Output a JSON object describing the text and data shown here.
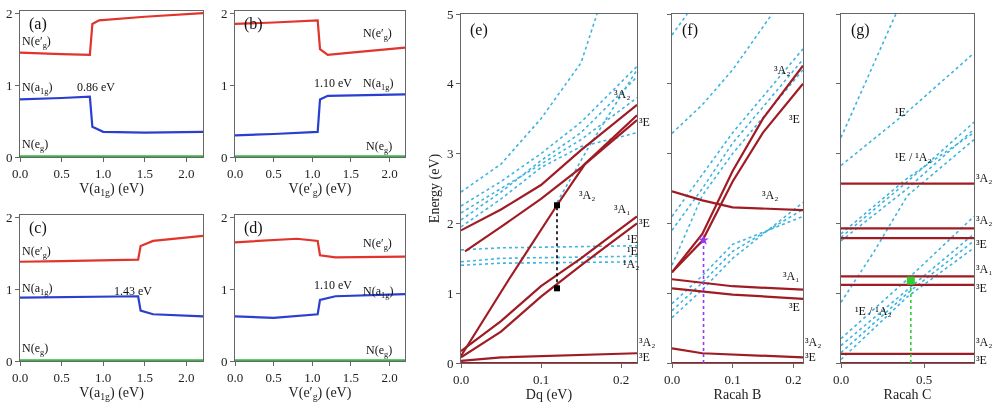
{
  "chart_data": [
    {
      "type": "line",
      "xlabel": "V(a$_{1g}$) (eV)",
      "xlim": [
        0,
        2.2
      ],
      "ylim": [
        0,
        2.03
      ],
      "xticks": [
        {
          "value": 0,
          "label": "0.0"
        },
        0.5,
        {
          "value": 1,
          "label": "1.0"
        },
        1.5,
        {
          "value": 2,
          "label": "2.0"
        }
      ],
      "yticks": [
        0,
        1,
        2
      ],
      "series": [
        {
          "color": "#e0342c",
          "x": [
            0,
            0.5,
            0.84,
            0.87,
            0.95,
            1.5,
            2.2
          ],
          "values": [
            1.45,
            1.43,
            1.42,
            1.85,
            1.9,
            1.95,
            2.0
          ]
        },
        {
          "color": "#2a3fcf",
          "x": [
            0,
            0.5,
            0.84,
            0.87,
            1.0,
            1.5,
            2.2
          ],
          "values": [
            0.8,
            0.82,
            0.84,
            0.42,
            0.35,
            0.34,
            0.35
          ]
        },
        {
          "color": "#3cb34a",
          "x": [
            0,
            2.2
          ],
          "values": [
            0.01,
            0.01
          ]
        }
      ],
      "annotations": [
        "(a)",
        "N(e′$_{g}$)",
        "N(a$_{1g}$)",
        "N(e$_{g}$)",
        "0.86 eV"
      ]
    },
    {
      "type": "line",
      "xlabel": "V(e′$_{g}$) (eV)",
      "xlim": [
        0,
        2.2
      ],
      "ylim": [
        0,
        2.03
      ],
      "xticks": [
        {
          "value": 0,
          "label": "0.0"
        },
        0.5,
        {
          "value": 1,
          "label": "1.0"
        },
        1.5,
        {
          "value": 2,
          "label": "2.0"
        }
      ],
      "yticks": [
        0,
        1,
        2
      ],
      "series": [
        {
          "color": "#e0342c",
          "x": [
            0,
            0.5,
            1.07,
            1.1,
            1.2,
            1.5,
            2.2
          ],
          "values": [
            1.85,
            1.87,
            1.9,
            1.5,
            1.42,
            1.45,
            1.52
          ]
        },
        {
          "color": "#2a3fcf",
          "x": [
            0,
            0.5,
            1.07,
            1.1,
            1.2,
            2.2
          ],
          "values": [
            0.3,
            0.32,
            0.35,
            0.8,
            0.85,
            0.87
          ]
        },
        {
          "color": "#3cb34a",
          "x": [
            0,
            2.2
          ],
          "values": [
            0.01,
            0.01
          ]
        }
      ],
      "annotations": [
        "(b)",
        "N(e′$_{g}$)",
        "N(a$_{1g}$)",
        "N(e$_{g}$)",
        "1.10 eV"
      ]
    },
    {
      "type": "line",
      "xlabel": "V(a$_{1g}$) (eV)",
      "xlim": [
        0,
        2.2
      ],
      "ylim": [
        0,
        2.03
      ],
      "xticks": [
        {
          "value": 0,
          "label": "0.0"
        },
        0.5,
        {
          "value": 1,
          "label": "1.0"
        },
        1.5,
        {
          "value": 2,
          "label": "2.0"
        }
      ],
      "yticks": [
        0,
        1,
        2
      ],
      "series": [
        {
          "color": "#e0342c",
          "x": [
            0,
            0.5,
            1.42,
            1.45,
            1.6,
            2.2
          ],
          "values": [
            1.38,
            1.39,
            1.41,
            1.6,
            1.67,
            1.74
          ]
        },
        {
          "color": "#2a3fcf",
          "x": [
            0,
            1.42,
            1.45,
            1.6,
            2.2
          ],
          "values": [
            0.88,
            0.9,
            0.7,
            0.65,
            0.62
          ]
        },
        {
          "color": "#3cb34a",
          "x": [
            0,
            2.2
          ],
          "values": [
            0.01,
            0.01
          ]
        }
      ],
      "annotations": [
        "(c)",
        "N(e′$_{g}$)",
        "N(a$_{1g}$)",
        "N(e$_{g}$)",
        "1.43 eV"
      ]
    },
    {
      "type": "line",
      "xlabel": "V(e′$_{g}$) (eV)",
      "xlim": [
        0,
        2.2
      ],
      "ylim": [
        0,
        2.03
      ],
      "xticks": [
        {
          "value": 0,
          "label": "0.0"
        },
        0.5,
        {
          "value": 1,
          "label": "1.0"
        },
        1.5,
        {
          "value": 2,
          "label": "2.0"
        }
      ],
      "yticks": [
        0,
        1,
        2
      ],
      "series": [
        {
          "color": "#e0342c",
          "x": [
            0,
            0.8,
            1.07,
            1.1,
            1.3,
            2.2
          ],
          "values": [
            1.65,
            1.7,
            1.67,
            1.47,
            1.44,
            1.45
          ]
        },
        {
          "color": "#2a3fcf",
          "x": [
            0,
            0.5,
            1.07,
            1.1,
            1.3,
            2.2
          ],
          "values": [
            0.62,
            0.6,
            0.65,
            0.85,
            0.9,
            0.93
          ]
        },
        {
          "color": "#3cb34a",
          "x": [
            0,
            2.2
          ],
          "values": [
            0.01,
            0.01
          ]
        }
      ],
      "annotations": [
        "(d)",
        "N(e′$_{g}$)",
        "N(a$_{1g}$)",
        "N(e$_{g}$)",
        "1.10 eV"
      ]
    },
    {
      "type": "line",
      "xlabel": "Dq (eV)",
      "ylabel": "Energy (eV)",
      "xlim": [
        0,
        0.22
      ],
      "ylim": [
        0,
        5
      ],
      "xticks": [
        {
          "value": 0,
          "label": "0.0"
        },
        0.1,
        0.2
      ],
      "yticks": [
        0,
        1,
        2,
        3,
        4,
        5
      ],
      "series": [
        {
          "color": "#3fb4e0",
          "line_style": "dotted",
          "x": [
            0,
            0.05,
            0.1,
            0.15,
            0.17
          ],
          "values": [
            2.45,
            2.85,
            3.5,
            4.3,
            5.0
          ]
        },
        {
          "color": "#3fb4e0",
          "line_style": "dotted",
          "x": [
            0,
            0.05,
            0.1,
            0.15,
            0.22
          ],
          "values": [
            2.25,
            2.6,
            3.0,
            3.45,
            4.25
          ]
        },
        {
          "color": "#3fb4e0",
          "line_style": "dotted",
          "x": [
            0,
            0.05,
            0.1,
            0.15,
            0.22
          ],
          "values": [
            2.05,
            2.45,
            2.9,
            3.3,
            4.1
          ]
        },
        {
          "color": "#3fb4e0",
          "line_style": "dotted",
          "x": [
            0,
            0.05,
            0.1,
            0.15,
            0.22
          ],
          "values": [
            1.95,
            2.35,
            2.8,
            3.1,
            3.3
          ]
        },
        {
          "color": "#3fb4e0",
          "line_style": "dotted",
          "x": [
            0,
            0.05,
            0.1,
            0.15,
            0.22
          ],
          "values": [
            2.15,
            2.5,
            2.85,
            3.2,
            3.8
          ]
        },
        {
          "color": "#3fb4e0",
          "line_style": "dotted",
          "x": [
            0.12,
            0.16,
            0.22
          ],
          "values": [
            2.3,
            3.1,
            4.2
          ]
        },
        {
          "color": "#3fb4e0",
          "line_style": "dotted",
          "x": [
            0,
            0.05,
            0.22
          ],
          "values": [
            1.62,
            1.65,
            1.68
          ]
        },
        {
          "color": "#3fb4e0",
          "line_style": "dotted",
          "x": [
            0,
            0.05,
            0.22
          ],
          "values": [
            1.45,
            1.5,
            1.53
          ]
        },
        {
          "color": "#3fb4e0",
          "line_style": "dotted",
          "x": [
            0,
            0.05,
            0.22
          ],
          "values": [
            1.4,
            1.43,
            1.45
          ]
        },
        {
          "color": "#a01c24",
          "x": [
            0,
            0.22
          ],
          "values": [
            0,
            0
          ]
        },
        {
          "color": "#a01c24",
          "x": [
            0,
            0.05,
            0.22
          ],
          "values": [
            0.03,
            0.08,
            0.14
          ]
        },
        {
          "color": "#a01c24",
          "x": [
            0,
            0.06,
            0.12,
            0.155,
            0.22
          ],
          "values": [
            0.1,
            1.2,
            2.26,
            2.85,
            3.48
          ]
        },
        {
          "color": "#a01c24",
          "x": [
            0.005,
            0.05,
            0.1,
            0.15,
            0.22
          ],
          "values": [
            1.6,
            1.95,
            2.35,
            2.8,
            3.55
          ]
        },
        {
          "color": "#a01c24",
          "x": [
            0,
            0.05,
            0.1,
            0.15,
            0.22
          ],
          "values": [
            1.9,
            2.2,
            2.55,
            3.05,
            3.7
          ]
        },
        {
          "color": "#a01c24",
          "x": [
            0,
            0.05,
            0.1,
            0.15,
            0.22
          ],
          "values": [
            0.17,
            0.6,
            1.1,
            1.5,
            2.1
          ]
        },
        {
          "color": "#a01c24",
          "x": [
            0,
            0.05,
            0.1,
            0.15,
            0.22
          ],
          "values": [
            0.08,
            0.45,
            0.95,
            1.4,
            2.0
          ]
        },
        {
          "color": "#000000",
          "line_style": "dotted",
          "marker": "square",
          "x": [
            0.12,
            0.12
          ],
          "values": [
            1.07,
            2.26
          ]
        }
      ],
      "annotations": [
        "(e)",
        "³A₂",
        "³E",
        "³A₂",
        "³A₁",
        "³E",
        "¹E",
        "¹E",
        "¹A₂",
        "³A₂",
        "³E"
      ]
    },
    {
      "type": "line",
      "xlabel": "Racah B",
      "xlim": [
        0,
        0.216
      ],
      "ylim": [
        0,
        5
      ],
      "xticks": [
        {
          "value": 0,
          "label": "0.0"
        },
        0.1,
        0.2
      ],
      "yticks": [
        0,
        1,
        2,
        3,
        4,
        5
      ],
      "tick_labels": "x",
      "series": [
        {
          "color": "#3fb4e0",
          "line_style": "dotted",
          "x": [
            0,
            0.05,
            0.1,
            0.165
          ],
          "values": [
            3.29,
            3.7,
            4.2,
            5.0
          ]
        },
        {
          "color": "#3fb4e0",
          "line_style": "dotted",
          "x": [
            0,
            0.025
          ],
          "values": [
            4.7,
            5.0
          ]
        },
        {
          "color": "#3fb4e0",
          "line_style": "dotted",
          "x": [
            0,
            0.05,
            0.1,
            0.216
          ],
          "values": [
            2.1,
            2.7,
            3.3,
            4.5
          ]
        },
        {
          "color": "#3fb4e0",
          "line_style": "dotted",
          "x": [
            0,
            0.05,
            0.1,
            0.216
          ],
          "values": [
            1.9,
            2.5,
            3.15,
            4.35
          ]
        },
        {
          "color": "#3fb4e0",
          "line_style": "dotted",
          "x": [
            0,
            0.05,
            0.1,
            0.216
          ],
          "values": [
            1.4,
            2.4,
            3.0,
            4.2
          ]
        },
        {
          "color": "#3fb4e0",
          "line_style": "dotted",
          "x": [
            0,
            0.05,
            0.1,
            0.216
          ],
          "values": [
            0.65,
            1.05,
            1.5,
            2.3
          ]
        },
        {
          "color": "#3fb4e0",
          "line_style": "dotted",
          "x": [
            0,
            0.05,
            0.1,
            0.216
          ],
          "values": [
            0.75,
            1.15,
            1.6,
            2.2
          ]
        },
        {
          "color": "#3fb4e0",
          "line_style": "dotted",
          "x": [
            0,
            0.05,
            0.1,
            0.216
          ],
          "values": [
            0.85,
            1.25,
            1.7,
            2.1
          ]
        },
        {
          "color": "#a01c24",
          "x": [
            0,
            0.216
          ],
          "values": [
            0,
            0
          ]
        },
        {
          "color": "#a01c24",
          "x": [
            0,
            0.05,
            0.216
          ],
          "values": [
            0.21,
            0.14,
            0.08
          ]
        },
        {
          "color": "#a01c24",
          "x": [
            0,
            0.1,
            0.216
          ],
          "values": [
            1.2,
            1.1,
            1.05
          ]
        },
        {
          "color": "#a01c24",
          "x": [
            0,
            0.1,
            0.216
          ],
          "values": [
            1.07,
            0.98,
            0.92
          ]
        },
        {
          "color": "#a01c24",
          "x": [
            0,
            0.05,
            0.1,
            0.216
          ],
          "values": [
            2.46,
            2.33,
            2.23,
            2.19
          ]
        },
        {
          "color": "#a01c24",
          "x": [
            0,
            0.05,
            0.1,
            0.15,
            0.216
          ],
          "values": [
            1.3,
            1.85,
            2.75,
            3.5,
            4.26
          ]
        },
        {
          "color": "#a01c24",
          "x": [
            0,
            0.05,
            0.1,
            0.15,
            0.216
          ],
          "values": [
            1.3,
            1.75,
            2.6,
            3.3,
            4.0
          ]
        },
        {
          "color": "#9933ff",
          "line_style": "dotted",
          "x": [
            0.052,
            0.052
          ],
          "values": [
            0,
            1.76
          ]
        },
        {
          "type": "scatter",
          "color": "#9933ff",
          "marker": "star",
          "x": [
            0.052
          ],
          "values": [
            1.76
          ]
        }
      ],
      "annotations": [
        "(f)",
        "³A₂",
        "³E",
        "³A₂",
        "³A₁",
        "³E",
        "³A₂",
        "³E"
      ]
    },
    {
      "type": "line",
      "xlabel": "Racah C",
      "xlim": [
        0,
        0.8
      ],
      "ylim": [
        0,
        5
      ],
      "xticks": [
        {
          "value": 0,
          "label": "0.0"
        },
        0.5
      ],
      "yticks": [
        0,
        1,
        2,
        3,
        4,
        5
      ],
      "tick_labels": "x",
      "series": [
        {
          "color": "#3fb4e0",
          "line_style": "dotted",
          "x": [
            0,
            0.33
          ],
          "values": [
            3.23,
            5.0
          ]
        },
        {
          "color": "#3fb4e0",
          "line_style": "dotted",
          "x": [
            0,
            0.4,
            0.8
          ],
          "values": [
            2.83,
            3.6,
            4.44
          ]
        },
        {
          "color": "#3fb4e0",
          "line_style": "dotted",
          "x": [
            0,
            0.4,
            0.8
          ],
          "values": [
            1.8,
            2.6,
            3.45
          ]
        },
        {
          "color": "#3fb4e0",
          "line_style": "dotted",
          "x": [
            0,
            0.4,
            0.8
          ],
          "values": [
            1.75,
            2.5,
            3.35
          ]
        },
        {
          "color": "#3fb4e0",
          "line_style": "dotted",
          "x": [
            0,
            0.4,
            0.8
          ],
          "values": [
            1.85,
            2.65,
            3.3
          ]
        },
        {
          "color": "#3fb4e0",
          "line_style": "dotted",
          "x": [
            0,
            0.2,
            0.4,
            0.8
          ],
          "values": [
            0.87,
            1.6,
            2.4,
            3.2
          ]
        },
        {
          "color": "#3fb4e0",
          "line_style": "dotted",
          "x": [
            0,
            0.4,
            0.8
          ],
          "values": [
            0.35,
            1.2,
            2.1
          ]
        },
        {
          "color": "#3fb4e0",
          "line_style": "dotted",
          "x": [
            0,
            0.4,
            0.8
          ],
          "values": [
            0.25,
            1.05,
            1.85
          ]
        },
        {
          "color": "#3fb4e0",
          "line_style": "dotted",
          "x": [
            0,
            0.4,
            0.8
          ],
          "values": [
            0.15,
            1.0,
            1.75
          ]
        },
        {
          "color": "#3fb4e0",
          "line_style": "dotted",
          "x": [
            0,
            0.4,
            0.8
          ],
          "values": [
            0.05,
            0.95,
            1.65
          ]
        },
        {
          "color": "#a01c24",
          "x": [
            0,
            0.8
          ],
          "values": [
            2.57,
            2.57
          ]
        },
        {
          "color": "#a01c24",
          "x": [
            0,
            0.8
          ],
          "values": [
            1.93,
            1.93
          ]
        },
        {
          "color": "#a01c24",
          "x": [
            0,
            0.8
          ],
          "values": [
            1.79,
            1.79
          ]
        },
        {
          "color": "#a01c24",
          "x": [
            0,
            0.8
          ],
          "values": [
            1.24,
            1.24
          ]
        },
        {
          "color": "#a01c24",
          "x": [
            0,
            0.8
          ],
          "values": [
            1.12,
            1.12
          ]
        },
        {
          "color": "#a01c24",
          "x": [
            0,
            0.8
          ],
          "values": [
            0.13,
            0.13
          ]
        },
        {
          "color": "#a01c24",
          "x": [
            0,
            0.8
          ],
          "values": [
            0,
            0
          ]
        },
        {
          "color": "#33cc33",
          "line_style": "dotted",
          "x": [
            0.42,
            0.42
          ],
          "values": [
            0,
            1.18
          ]
        },
        {
          "type": "scatter",
          "color": "#33cc33",
          "marker": "square",
          "x": [
            0.42
          ],
          "values": [
            1.18
          ]
        }
      ],
      "annotations": [
        "(g)",
        "¹E",
        "¹E / ¹A₂",
        "¹E / ¹A₂",
        "³A₂",
        "³A₂",
        "³E",
        "³A₁",
        "³E",
        "³A₂",
        "³E"
      ]
    }
  ]
}
